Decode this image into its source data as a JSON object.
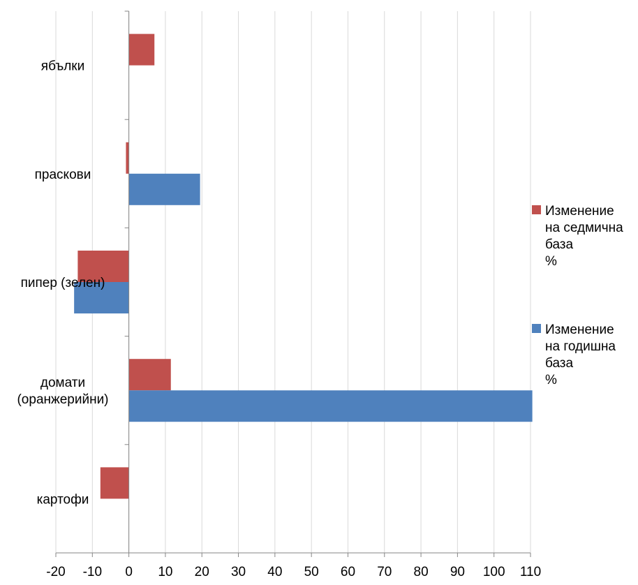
{
  "chart_data": {
    "type": "bar",
    "orientation": "horizontal",
    "title": "",
    "xlabel": "",
    "ylabel": "",
    "categories": [
      "ябълки",
      "праскови",
      "пипер (зелен)",
      "домати (оранжерийни)",
      "картофи"
    ],
    "category_lines": [
      [
        "ябълки"
      ],
      [
        "праскови"
      ],
      [
        "пипер (зелен)"
      ],
      [
        "домати",
        "(оранжерийни)"
      ],
      [
        "картофи"
      ]
    ],
    "series": [
      {
        "name": "Изменение на седмична база %",
        "name_lines": [
          "Изменение",
          "на седмична",
          "база",
          "%"
        ],
        "color": "#C0504D",
        "values": [
          7,
          -0.8,
          -14,
          11.5,
          -7.8
        ]
      },
      {
        "name": "Изменение на годишна база %",
        "name_lines": [
          "Изменение",
          "на годишна",
          "база",
          "%"
        ],
        "color": "#4F81BD",
        "values": [
          0,
          19.5,
          -15,
          110.5,
          0
        ]
      }
    ],
    "xlim": [
      -20,
      110
    ],
    "xticks": [
      -20,
      -10,
      0,
      10,
      20,
      30,
      40,
      50,
      60,
      70,
      80,
      90,
      100,
      110
    ],
    "grid": true,
    "legend_position": "right"
  }
}
